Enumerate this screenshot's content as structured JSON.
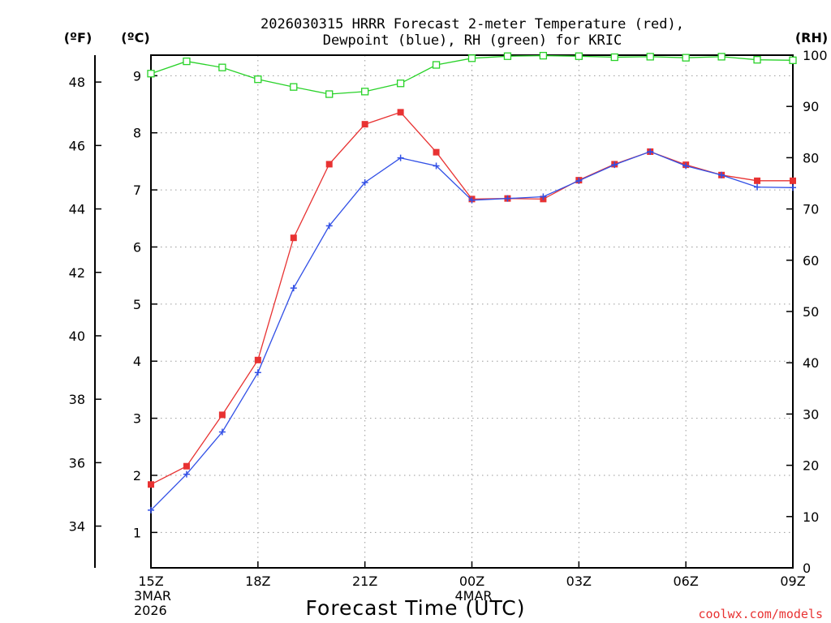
{
  "chart_data": {
    "type": "line",
    "title_line1": "2026030315 HRRR Forecast 2-meter Temperature (red),",
    "title_line2": "Dewpoint (blue), RH (green) for KRIC",
    "left_unit_f": "(ºF)",
    "left_unit_c": "(ºC)",
    "right_unit": "(RH)",
    "xlabel": "Forecast Time (UTC)",
    "credit": "coolwx.com/models",
    "x_ticks": [
      {
        "hour": 0,
        "label": "15Z",
        "sub1": "3MAR",
        "sub2": "2026"
      },
      {
        "hour": 3,
        "label": "18Z",
        "sub1": "",
        "sub2": ""
      },
      {
        "hour": 6,
        "label": "21Z",
        "sub1": "",
        "sub2": ""
      },
      {
        "hour": 9,
        "label": "00Z",
        "sub1": "4MAR",
        "sub2": ""
      },
      {
        "hour": 12,
        "label": "03Z",
        "sub1": "",
        "sub2": ""
      },
      {
        "hour": 15,
        "label": "06Z",
        "sub1": "",
        "sub2": ""
      },
      {
        "hour": 18,
        "label": "09Z",
        "sub1": "",
        "sub2": ""
      }
    ],
    "celsius_ylim": [
      0.38,
      9.36
    ],
    "celsius_ticks": [
      1,
      2,
      3,
      4,
      5,
      6,
      7,
      8,
      9
    ],
    "fahrenheit_ticks": [
      34,
      36,
      38,
      40,
      42,
      44,
      46,
      48
    ],
    "rh_ylim": [
      0,
      100
    ],
    "rh_ticks": [
      0,
      10,
      20,
      30,
      40,
      50,
      60,
      70,
      80,
      90,
      100
    ],
    "hours": [
      0,
      1,
      2,
      3,
      4,
      5,
      6,
      7,
      8,
      9,
      10,
      11,
      12,
      13,
      14,
      15,
      16,
      17,
      18
    ],
    "series": [
      {
        "name": "Temperature",
        "unit": "C",
        "color": "#e83232",
        "marker": "filled-square",
        "values": [
          1.84,
          2.16,
          3.06,
          4.02,
          6.16,
          7.45,
          8.15,
          8.36,
          7.66,
          6.84,
          6.85,
          6.84,
          7.17,
          7.45,
          7.67,
          7.44,
          7.26,
          7.16,
          7.16
        ]
      },
      {
        "name": "Dewpoint",
        "unit": "C",
        "color": "#3250e6",
        "marker": "plus",
        "values": [
          1.39,
          2.02,
          2.76,
          3.8,
          5.28,
          6.37,
          7.13,
          7.56,
          7.42,
          6.82,
          6.85,
          6.88,
          7.16,
          7.44,
          7.67,
          7.42,
          7.26,
          7.05,
          7.04
        ]
      },
      {
        "name": "RH",
        "unit": "%",
        "color": "#28d228",
        "marker": "open-square",
        "values": [
          96.4,
          98.8,
          97.6,
          95.3,
          93.8,
          92.4,
          92.9,
          94.5,
          98.1,
          99.4,
          99.8,
          99.9,
          99.8,
          99.6,
          99.7,
          99.5,
          99.7,
          99.1,
          99.0
        ]
      }
    ]
  }
}
